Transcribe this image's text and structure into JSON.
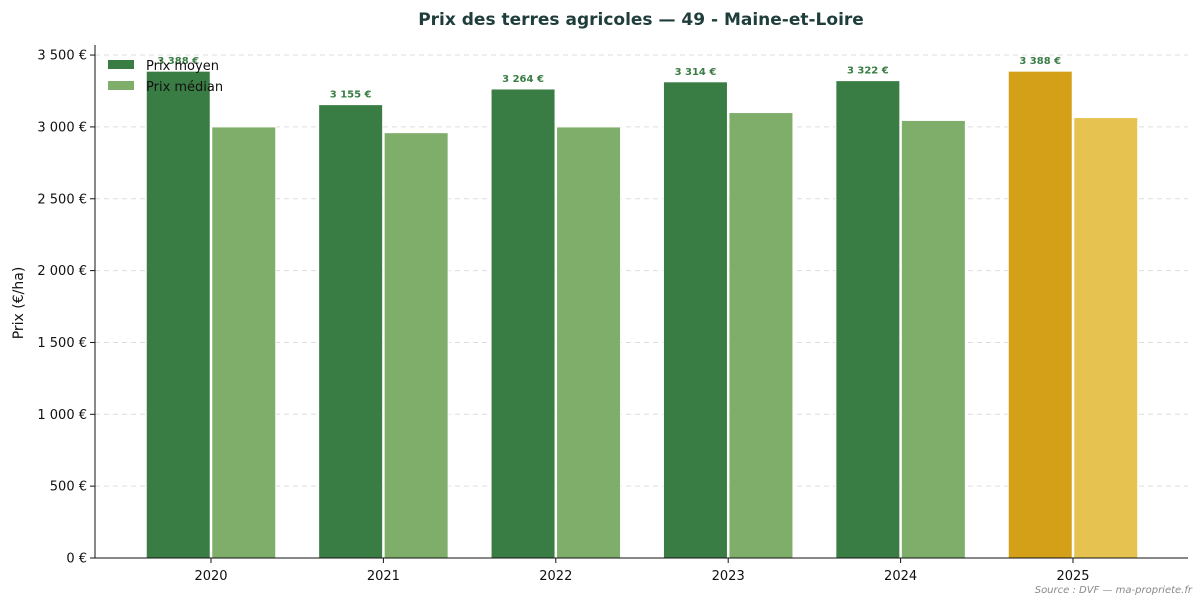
{
  "chart_data": {
    "type": "bar",
    "title": "Prix des terres agricoles — 49 - Maine-et-Loire",
    "ylabel": "Prix (€/ha)",
    "xlabel": "",
    "categories": [
      "2020",
      "2021",
      "2022",
      "2023",
      "2024",
      "2025"
    ],
    "series": [
      {
        "name": "Prix moyen",
        "values": [
          3388,
          3155,
          3264,
          3314,
          3322,
          3388
        ],
        "data_labels": [
          "3 388 €",
          "3 155 €",
          "3 264 €",
          "3 314 €",
          "3 322 €",
          "3 388 €"
        ],
        "color": "#3a7d44",
        "highlight_color": "#d4a017"
      },
      {
        "name": "Prix médian",
        "values": [
          3000,
          2960,
          3000,
          3100,
          3045,
          3065
        ],
        "color": "#7fae6a",
        "highlight_color": "#e6c251"
      }
    ],
    "highlight_category": "2025",
    "ylim": [
      0,
      3570
    ],
    "yticks": [
      0,
      500,
      1000,
      1500,
      2000,
      2500,
      3000,
      3500
    ],
    "ytick_labels": [
      "0 €",
      "500 €",
      "1 000 €",
      "1 500 €",
      "2 000 €",
      "2 500 €",
      "3 000 €",
      "3 500 €"
    ],
    "grid": "horizontal dashed",
    "legend_position": "top-left",
    "label_color": "#3a7d44",
    "source": "Source : DVF — ma-propriete.fr"
  }
}
